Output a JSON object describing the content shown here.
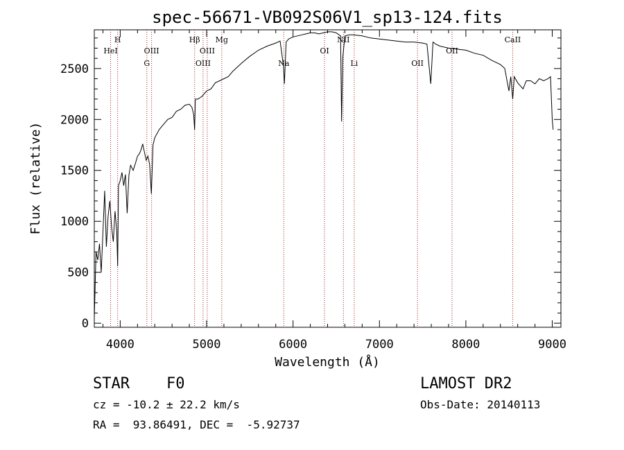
{
  "chart_data": {
    "type": "line",
    "title": "spec-56671-VB092S06V1_sp13-124.fits",
    "xlabel": "Wavelength (Å)",
    "ylabel": "Flux (relative)",
    "xlim": [
      3700,
      9100
    ],
    "ylim": [
      -40,
      2880
    ],
    "x_ticks": [
      4000,
      5000,
      6000,
      7000,
      8000,
      9000
    ],
    "y_ticks": [
      0,
      500,
      1000,
      1500,
      2000,
      2500
    ],
    "grid": false,
    "series": [
      {
        "x": [
          3700,
          3720,
          3740,
          3760,
          3780,
          3800,
          3820,
          3840,
          3860,
          3880,
          3900,
          3920,
          3940,
          3960,
          3970,
          3980,
          4000,
          4020,
          4040,
          4060,
          4080,
          4100,
          4120,
          4150,
          4180,
          4200,
          4220,
          4240,
          4260,
          4280,
          4300,
          4320,
          4340,
          4360,
          4380,
          4400,
          4450,
          4500,
          4550,
          4600,
          4650,
          4700,
          4750,
          4800,
          4830,
          4850,
          4861,
          4870,
          4900,
          4950,
          5000,
          5050,
          5100,
          5150,
          5200,
          5250,
          5300,
          5400,
          5500,
          5600,
          5700,
          5800,
          5850,
          5890,
          5900,
          5920,
          5950,
          6000,
          6050,
          6100,
          6150,
          6200,
          6250,
          6300,
          6350,
          6400,
          6450,
          6500,
          6550,
          6562,
          6575,
          6600,
          6650,
          6700,
          6800,
          6900,
          7000,
          7100,
          7200,
          7300,
          7400,
          7500,
          7550,
          7594,
          7620,
          7650,
          7700,
          7800,
          7900,
          8000,
          8100,
          8200,
          8300,
          8400,
          8450,
          8498,
          8520,
          8542,
          8560,
          8600,
          8662,
          8700,
          8750,
          8800,
          8850,
          8900,
          8950,
          8980,
          9000,
          9010
        ],
        "y": [
          50,
          700,
          620,
          780,
          500,
          900,
          1300,
          750,
          1050,
          1200,
          950,
          800,
          1100,
          900,
          560,
          1350,
          1400,
          1480,
          1350,
          1460,
          1080,
          1450,
          1550,
          1500,
          1580,
          1640,
          1660,
          1700,
          1760,
          1680,
          1600,
          1640,
          1560,
          1270,
          1750,
          1820,
          1900,
          1950,
          2000,
          2020,
          2080,
          2100,
          2140,
          2150,
          2120,
          2050,
          1900,
          2200,
          2200,
          2230,
          2280,
          2300,
          2360,
          2380,
          2400,
          2420,
          2470,
          2550,
          2620,
          2680,
          2720,
          2750,
          2770,
          2520,
          2350,
          2760,
          2790,
          2810,
          2820,
          2830,
          2840,
          2850,
          2850,
          2840,
          2850,
          2860,
          2860,
          2850,
          2820,
          1980,
          2600,
          2820,
          2830,
          2830,
          2820,
          2800,
          2790,
          2780,
          2770,
          2760,
          2760,
          2750,
          2740,
          2350,
          2760,
          2740,
          2720,
          2700,
          2690,
          2680,
          2650,
          2630,
          2580,
          2540,
          2500,
          2280,
          2420,
          2200,
          2420,
          2360,
          2300,
          2380,
          2380,
          2350,
          2400,
          2380,
          2400,
          2420,
          2000,
          1900
        ]
      }
    ],
    "line_markers": [
      {
        "wl": 3889,
        "label": "HeI",
        "row": 2
      },
      {
        "wl": 3970,
        "label": "H",
        "row": 1
      },
      {
        "wl": 4308,
        "label": "G",
        "row": 3
      },
      {
        "wl": 4363,
        "label": "OIII",
        "row": 2
      },
      {
        "wl": 4861,
        "label": "Hβ",
        "row": 1
      },
      {
        "wl": 4959,
        "label": "OIII",
        "row": 3
      },
      {
        "wl": 5007,
        "label": "OIII",
        "row": 2
      },
      {
        "wl": 5175,
        "label": "Mg",
        "row": 1
      },
      {
        "wl": 5893,
        "label": "Na",
        "row": 3
      },
      {
        "wl": 6364,
        "label": "OI",
        "row": 2
      },
      {
        "wl": 6583,
        "label": "NII",
        "row": 1
      },
      {
        "wl": 6708,
        "label": "Li",
        "row": 3
      },
      {
        "wl": 7440,
        "label": "OII",
        "row": 3
      },
      {
        "wl": 7840,
        "label": "OII",
        "row": 2
      },
      {
        "wl": 8542,
        "label": "CaII",
        "row": 1
      }
    ]
  },
  "info": {
    "class": "STAR",
    "subclass": "F0",
    "survey": "LAMOST DR2",
    "redshift": "cz = -10.2 ± 22.2 km/s",
    "obs_date": "Obs-Date: 20140113",
    "coords": "RA =  93.86491, DEC =  -5.92737"
  },
  "colors": {
    "spectrum": "#000000",
    "marker": "#a02020",
    "background": "#ffffff"
  }
}
